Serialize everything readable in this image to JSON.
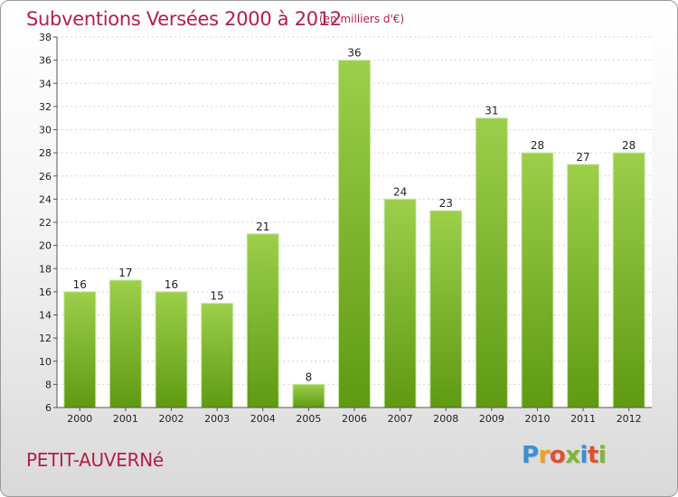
{
  "title": "Subventions Versées 2000 à 2012",
  "subtitle": "(en milliers d'€)",
  "commune": "PETIT-AUVERNé",
  "logo": {
    "letters": [
      "P",
      "r",
      "o",
      "x",
      "i",
      "t",
      "i"
    ],
    "colors": [
      "#3a8fd8",
      "#f0a020",
      "#e05030",
      "#7ab830",
      "#3a8fd8",
      "#e05030",
      "#7ab830"
    ]
  },
  "colors": {
    "title": "#b0204a",
    "bar_top": "#9ccf4a",
    "bar_bottom": "#5f9a12"
  },
  "chart_data": {
    "type": "bar",
    "title": "Subventions Versées 2000 à 2012",
    "subtitle": "(en milliers d'€)",
    "categories": [
      "2000",
      "2001",
      "2002",
      "2003",
      "2004",
      "2005",
      "2006",
      "2007",
      "2008",
      "2009",
      "2010",
      "2011",
      "2012"
    ],
    "values": [
      16,
      17,
      16,
      15,
      21,
      8,
      36,
      24,
      23,
      31,
      28,
      27,
      28
    ],
    "ylim": [
      6,
      38
    ],
    "yticks": [
      6,
      8,
      10,
      12,
      14,
      16,
      18,
      20,
      22,
      24,
      26,
      28,
      30,
      32,
      34,
      36,
      38
    ],
    "grid": true,
    "data_labels": true,
    "xlabel": "",
    "ylabel": ""
  }
}
